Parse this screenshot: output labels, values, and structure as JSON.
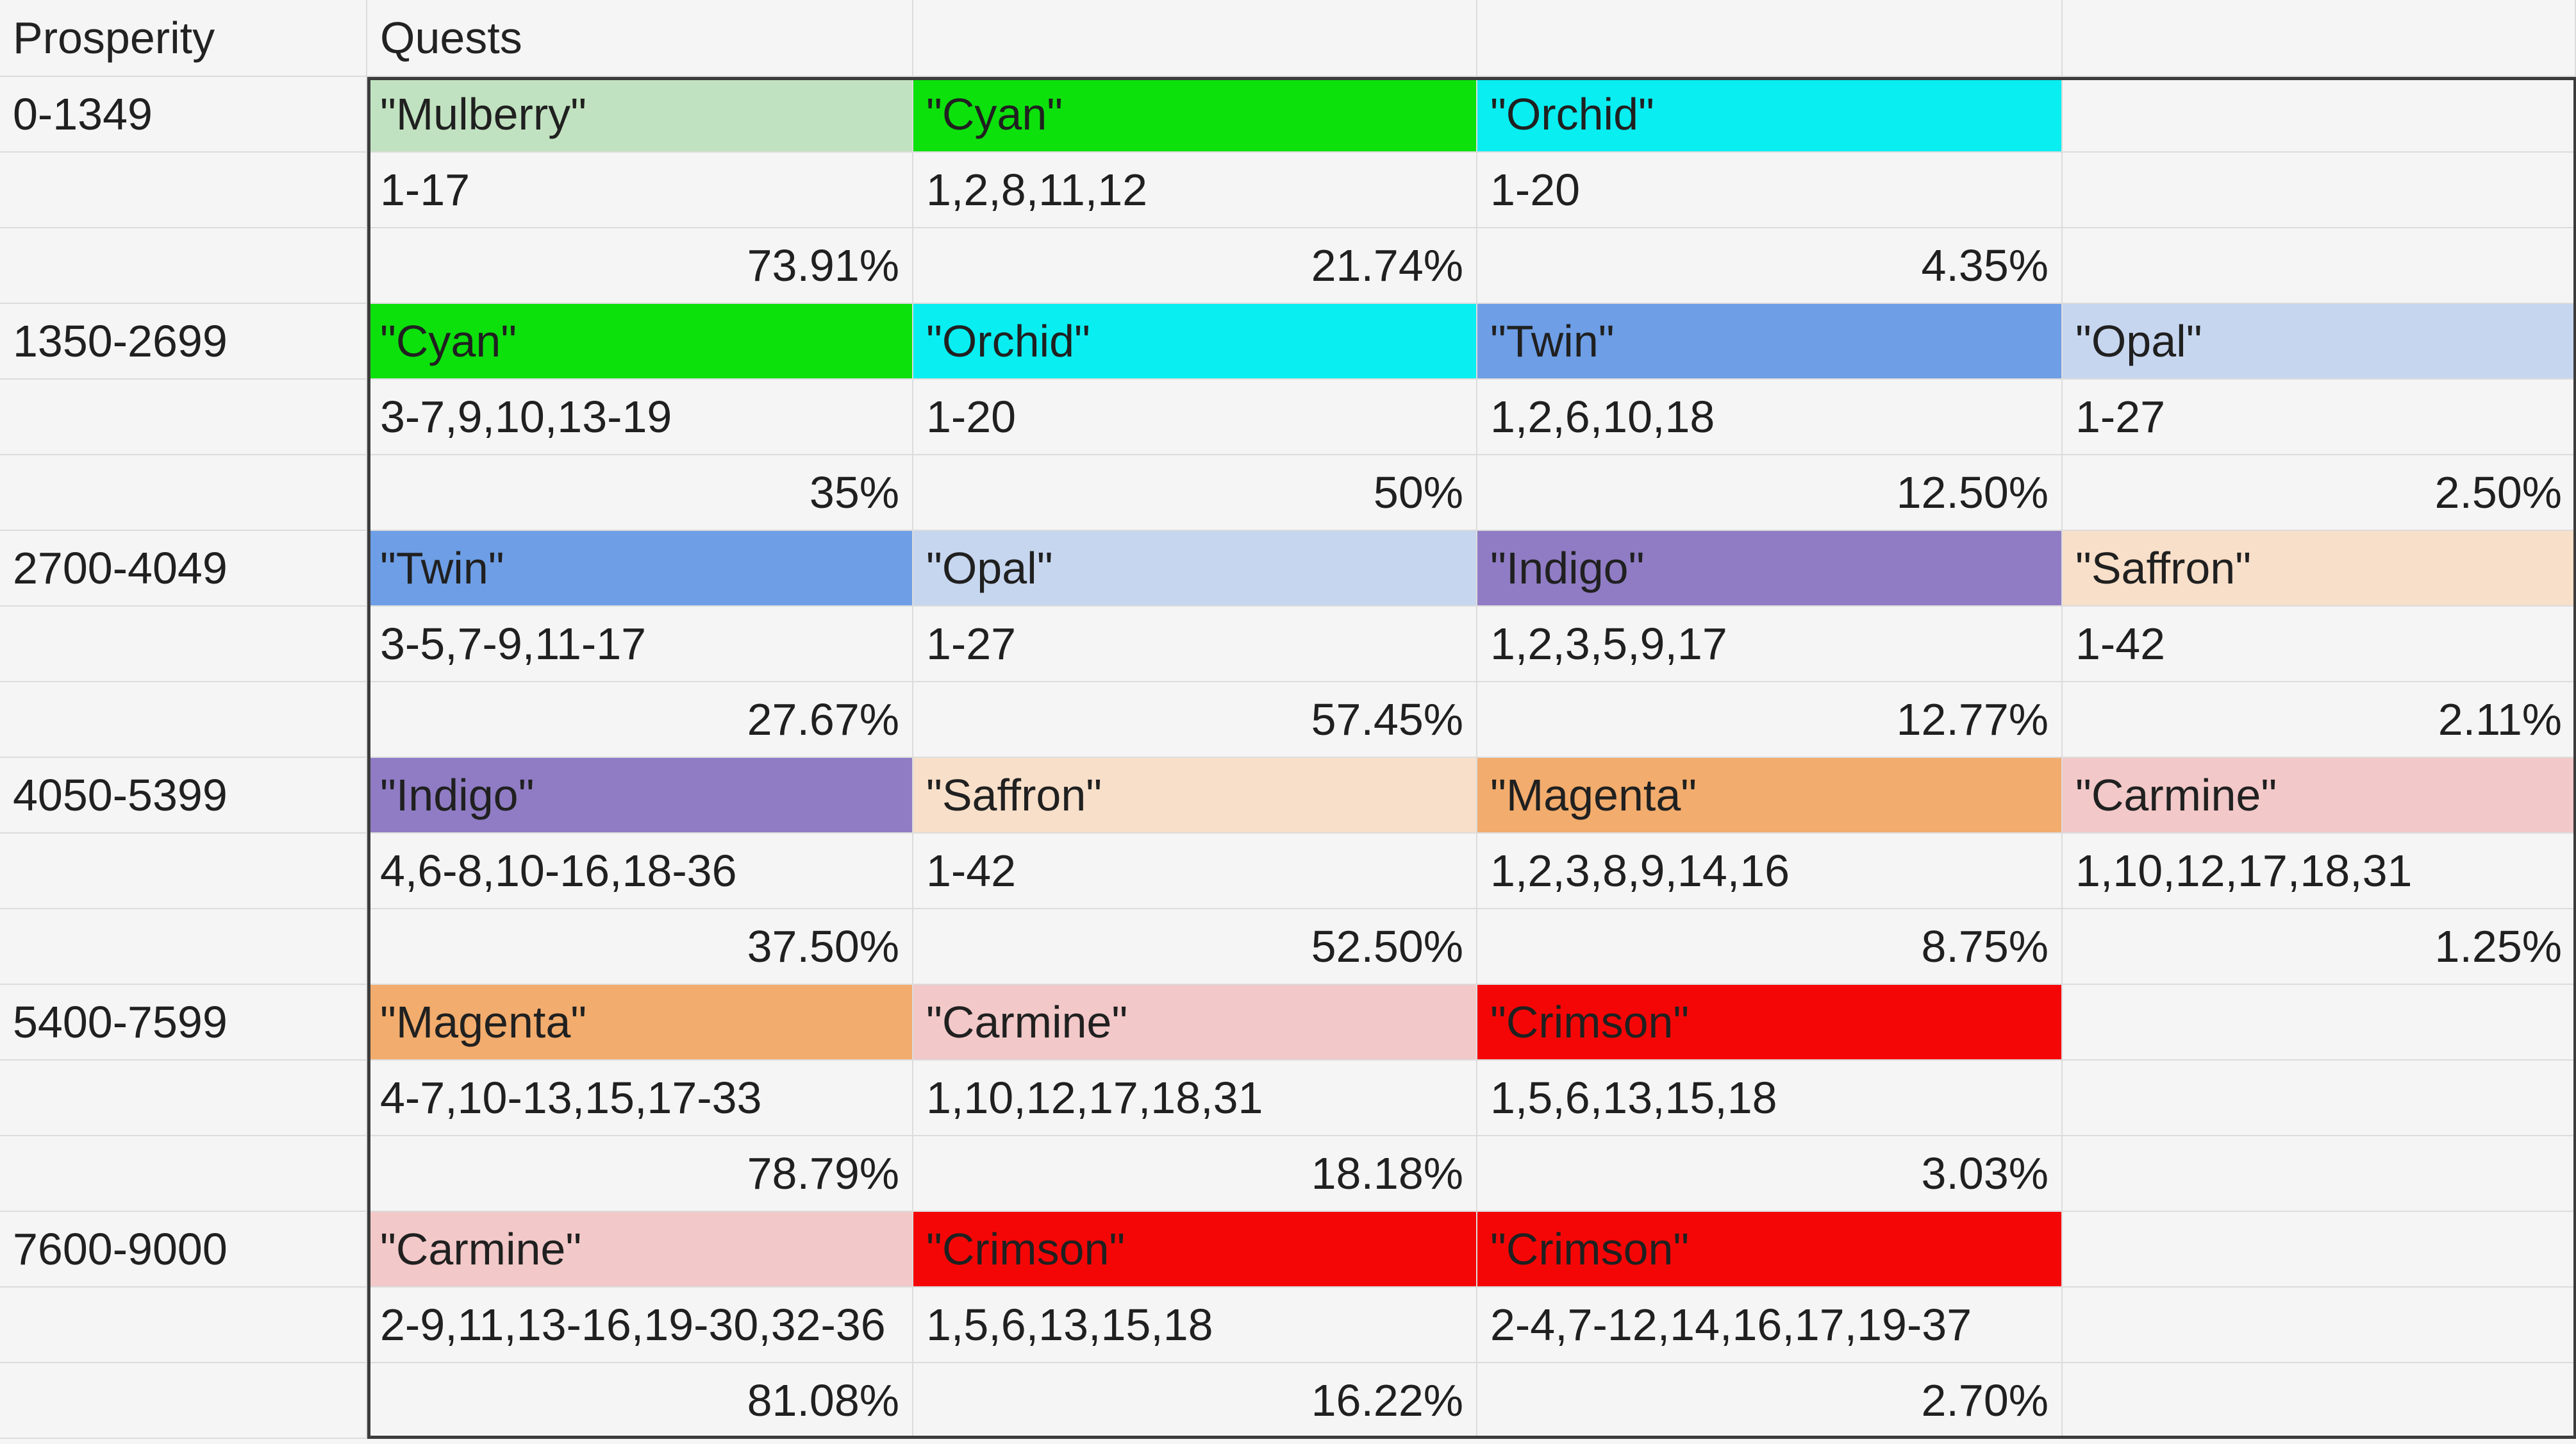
{
  "colors": {
    "Mulberry": "#c1e2c0",
    "Cyan": "#0ce10c",
    "Orchid": "#08eef1",
    "Twin": "#6d9ee6",
    "Opal": "#c7d6ef",
    "Indigo": "#8f7cc4",
    "Saffron": "#f8dfc9",
    "Magenta": "#f2ac6d",
    "Carmine": "#f2c8c8",
    "Crimson": "#f50606"
  },
  "header": {
    "prosperity": "Prosperity",
    "quests": "Quests"
  },
  "groups": [
    {
      "range": "0-1349",
      "entries": [
        {
          "name": "\"Mulberry\"",
          "key": "Mulberry",
          "quests": "1-17",
          "pct": "73.91%"
        },
        {
          "name": "\"Cyan\"",
          "key": "Cyan",
          "quests": "1,2,8,11,12",
          "pct": "21.74%"
        },
        {
          "name": "\"Orchid\"",
          "key": "Orchid",
          "quests": "1-20",
          "pct": "4.35%"
        }
      ]
    },
    {
      "range": "1350-2699",
      "entries": [
        {
          "name": "\"Cyan\"",
          "key": "Cyan",
          "quests": "3-7,9,10,13-19",
          "pct": "35%"
        },
        {
          "name": "\"Orchid\"",
          "key": "Orchid",
          "quests": "1-20",
          "pct": "50%"
        },
        {
          "name": "\"Twin\"",
          "key": "Twin",
          "quests": "1,2,6,10,18",
          "pct": "12.50%"
        },
        {
          "name": "\"Opal\"",
          "key": "Opal",
          "quests": "1-27",
          "pct": "2.50%"
        }
      ]
    },
    {
      "range": "2700-4049",
      "entries": [
        {
          "name": "\"Twin\"",
          "key": "Twin",
          "quests": "3-5,7-9,11-17",
          "pct": "27.67%"
        },
        {
          "name": "\"Opal\"",
          "key": "Opal",
          "quests": "1-27",
          "pct": "57.45%"
        },
        {
          "name": "\"Indigo\"",
          "key": "Indigo",
          "quests": "1,2,3,5,9,17",
          "pct": "12.77%"
        },
        {
          "name": "\"Saffron\"",
          "key": "Saffron",
          "quests": "1-42",
          "pct": "2.11%"
        }
      ]
    },
    {
      "range": "4050-5399",
      "entries": [
        {
          "name": "\"Indigo\"",
          "key": "Indigo",
          "quests": "4,6-8,10-16,18-36",
          "pct": "37.50%"
        },
        {
          "name": "\"Saffron\"",
          "key": "Saffron",
          "quests": "1-42",
          "pct": "52.50%"
        },
        {
          "name": "\"Magenta\"",
          "key": "Magenta",
          "quests": "1,2,3,8,9,14,16",
          "pct": "8.75%"
        },
        {
          "name": "\"Carmine\"",
          "key": "Carmine",
          "quests": "1,10,12,17,18,31",
          "pct": "1.25%"
        }
      ]
    },
    {
      "range": "5400-7599",
      "entries": [
        {
          "name": "\"Magenta\"",
          "key": "Magenta",
          "quests": "4-7,10-13,15,17-33",
          "pct": "78.79%"
        },
        {
          "name": "\"Carmine\"",
          "key": "Carmine",
          "quests": "1,10,12,17,18,31",
          "pct": "18.18%"
        },
        {
          "name": "\"Crimson\"",
          "key": "Crimson",
          "quests": "1,5,6,13,15,18",
          "pct": "3.03%"
        }
      ]
    },
    {
      "range": "7600-9000",
      "entries": [
        {
          "name": "\"Carmine\"",
          "key": "Carmine",
          "quests": "2-9,11,13-16,19-30,32-36",
          "pct": "81.08%"
        },
        {
          "name": "\"Crimson\"",
          "key": "Crimson",
          "quests": "1,5,6,13,15,18",
          "pct": "16.22%"
        },
        {
          "name": "\"Crimson\"",
          "key": "Crimson",
          "quests": "2-4,7-12,14,16,17,19-37",
          "pct": "2.70%"
        }
      ]
    }
  ]
}
